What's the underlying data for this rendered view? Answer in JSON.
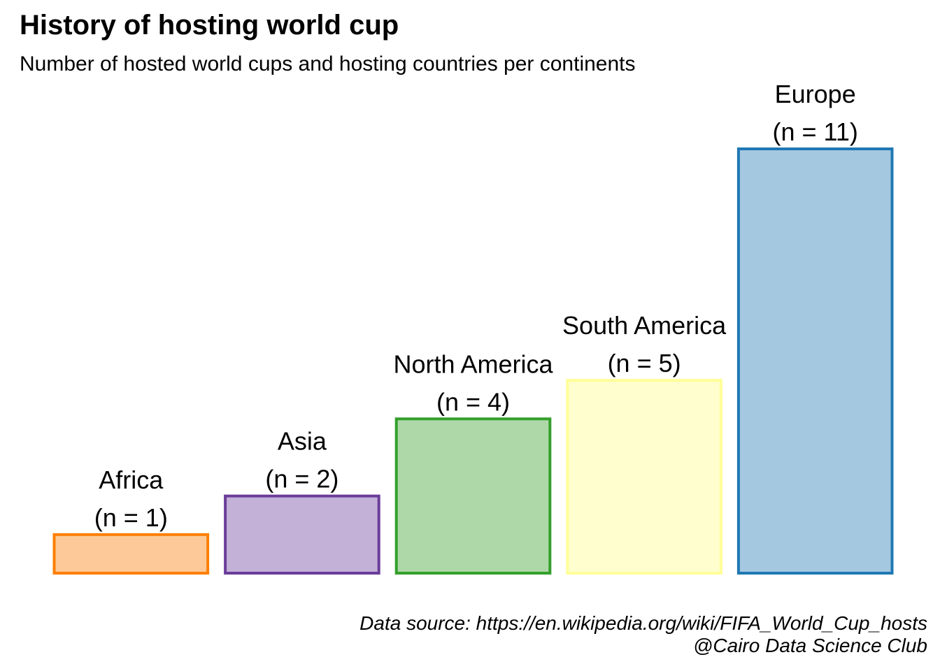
{
  "chart_data": {
    "type": "bar",
    "title": "History of hosting world cup",
    "subtitle": "Number of hosted world cups and hosting countries per continents",
    "categories": [
      "Africa",
      "Asia",
      "North America",
      "South America",
      "Europe"
    ],
    "values": [
      1,
      2,
      4,
      5,
      11
    ],
    "value_labels": [
      "(n = 1)",
      "(n = 2)",
      "(n = 4)",
      "(n = 5)",
      "(n = 11)"
    ],
    "fill_colors": [
      "#FDC998",
      "#C4B1D7",
      "#AFD8A9",
      "#FEFECE",
      "#A5C8E1"
    ],
    "border_colors": [
      "#FF7F00",
      "#6A3D9A",
      "#33A02C",
      "#FFFF99",
      "#1F78B4"
    ],
    "xlabel": "",
    "ylabel": "",
    "ylim": [
      0,
      11
    ],
    "grid": false,
    "legend": "none"
  },
  "caption": {
    "source": "Data source: https://en.wikipedia.org/wiki/FIFA_World_Cup_hosts",
    "credit": "@Cairo Data Science Club"
  }
}
